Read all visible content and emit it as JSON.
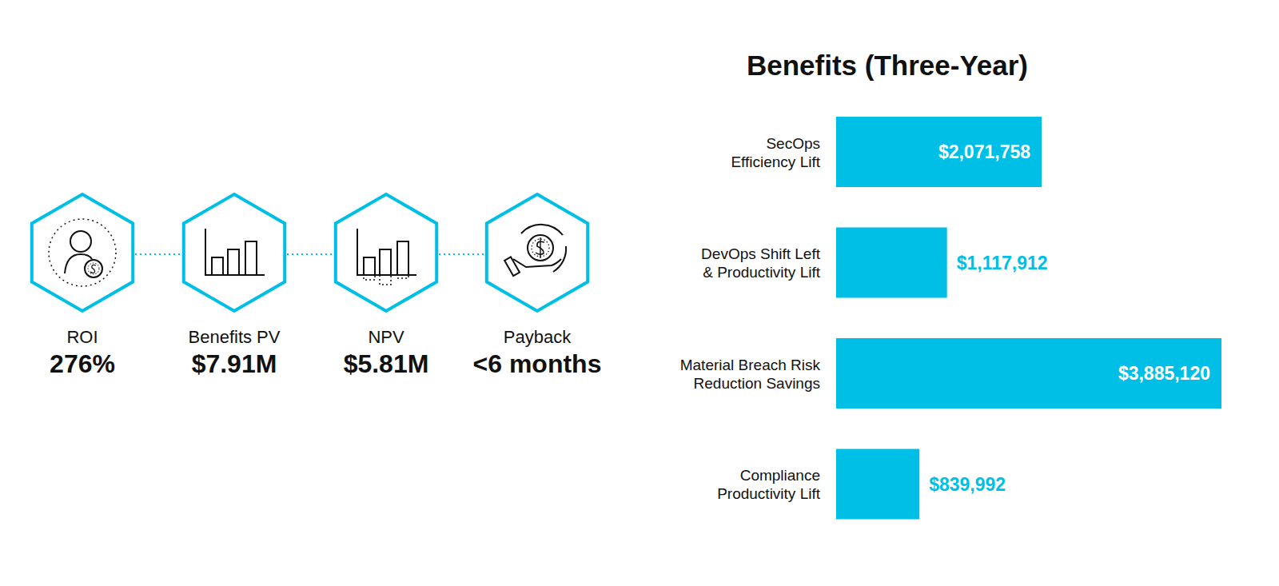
{
  "chart_data": {
    "type": "bar",
    "title": "Benefits (Three-Year)",
    "orientation": "horizontal",
    "categories": [
      "SecOps\nEfficiency Lift",
      "DevOps Shift Left\n& Productivity Lift",
      "Material Breach Risk\nReduction Savings",
      "Compliance\nProductivity Lift"
    ],
    "values": [
      2071758,
      1117912,
      3885120,
      839992
    ],
    "value_labels": [
      "$2,071,758",
      "$1,117,912",
      "$3,885,120",
      "$839,992"
    ],
    "color": "#00bfe7",
    "xlim": [
      0,
      3885120
    ],
    "data_labels": true,
    "tick_labels": "y",
    "grid": false
  },
  "kpis": [
    {
      "label": "ROI",
      "value": "276%"
    },
    {
      "label": "Benefits PV",
      "value": "$7.91M"
    },
    {
      "label": "NPV",
      "value": "$5.81M"
    },
    {
      "label": "Payback",
      "value": "<6 months"
    }
  ]
}
